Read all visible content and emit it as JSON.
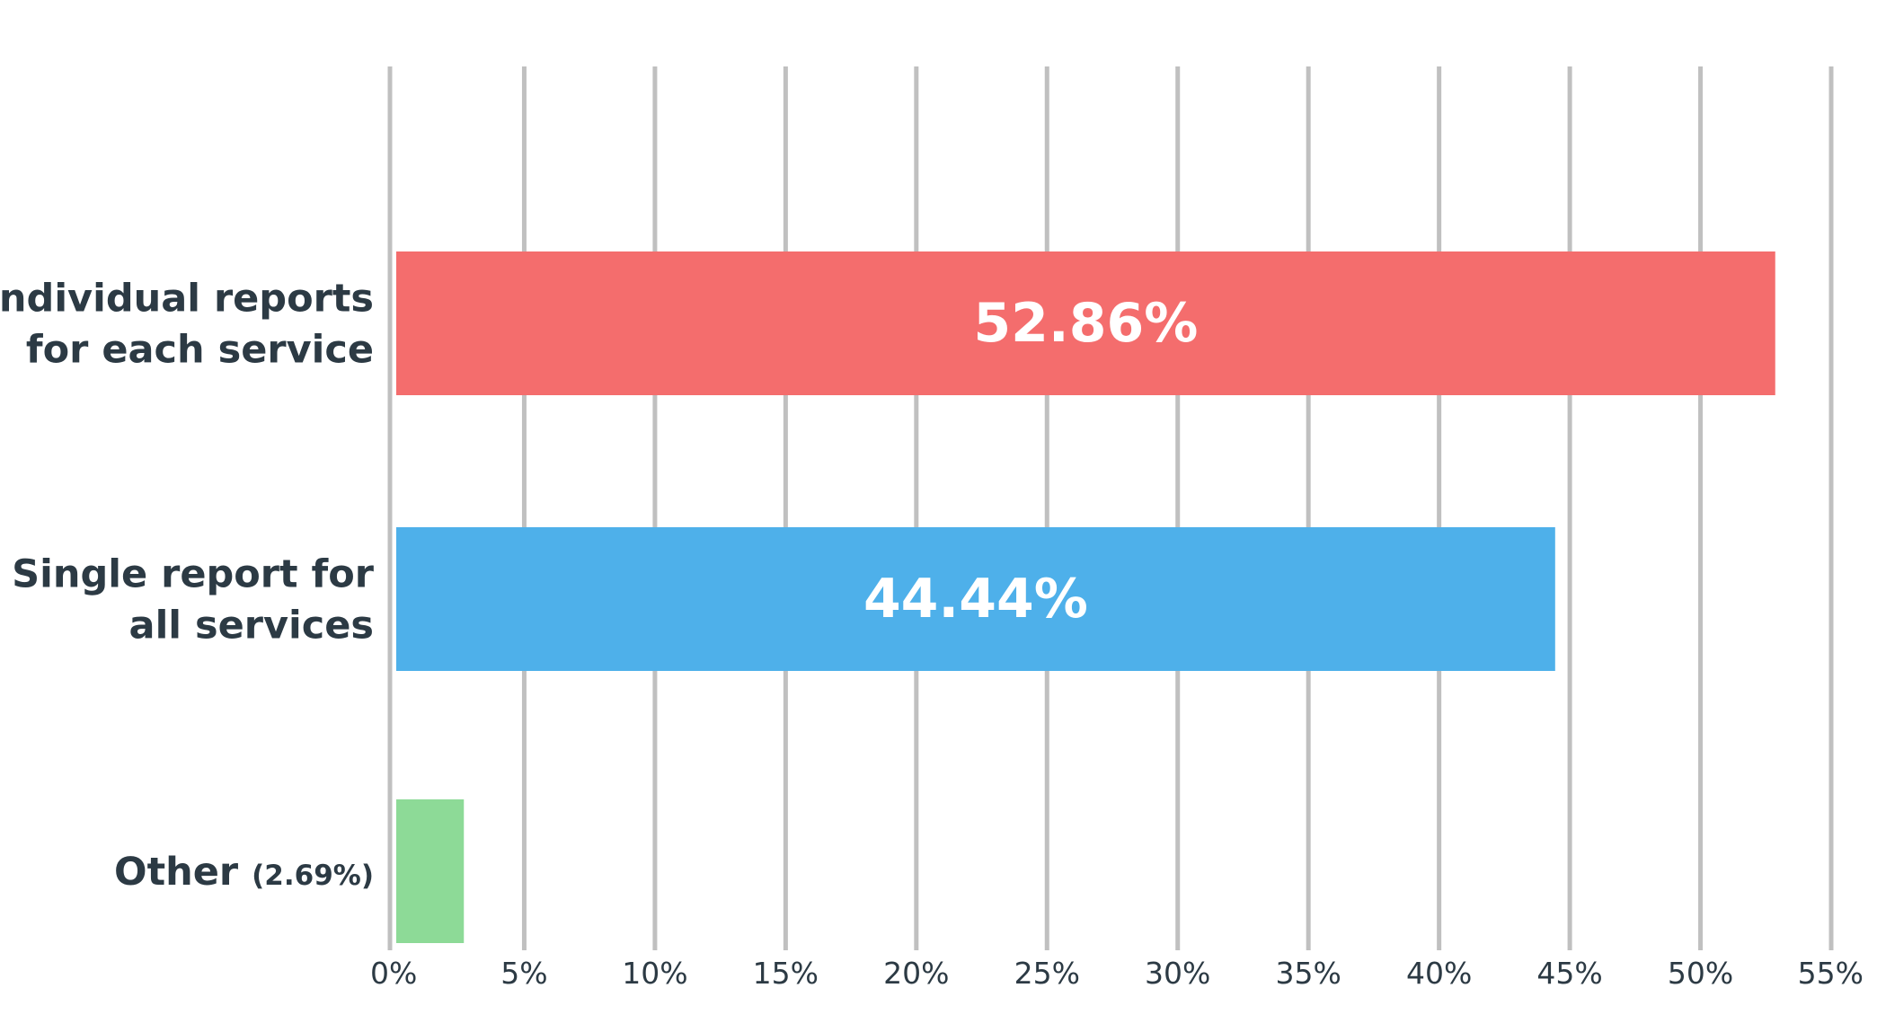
{
  "chart_data": {
    "type": "bar",
    "orientation": "horizontal",
    "categories": [
      [
        "Individual reports",
        "for each service"
      ],
      [
        "Single report for",
        "all services"
      ],
      [
        "Other"
      ]
    ],
    "category_suffixes": [
      "",
      "",
      "(2.69%)"
    ],
    "values": [
      52.86,
      44.44,
      2.69
    ],
    "data_labels": [
      "52.86%",
      "44.44%",
      ""
    ],
    "colors": [
      "#f46d6d",
      "#4eb0ea",
      "#8dda97"
    ],
    "xlim": [
      0,
      55
    ],
    "xticks": [
      0,
      5,
      10,
      15,
      20,
      25,
      30,
      35,
      40,
      45,
      50,
      55
    ],
    "tick_labels": [
      "0%",
      "5%",
      "10%",
      "15%",
      "20%",
      "25%",
      "30%",
      "35%",
      "40%",
      "45%",
      "50%",
      "55%"
    ],
    "grid": true,
    "gridline_color": "#c0c0c0",
    "title": "",
    "xlabel": "",
    "ylabel": ""
  }
}
